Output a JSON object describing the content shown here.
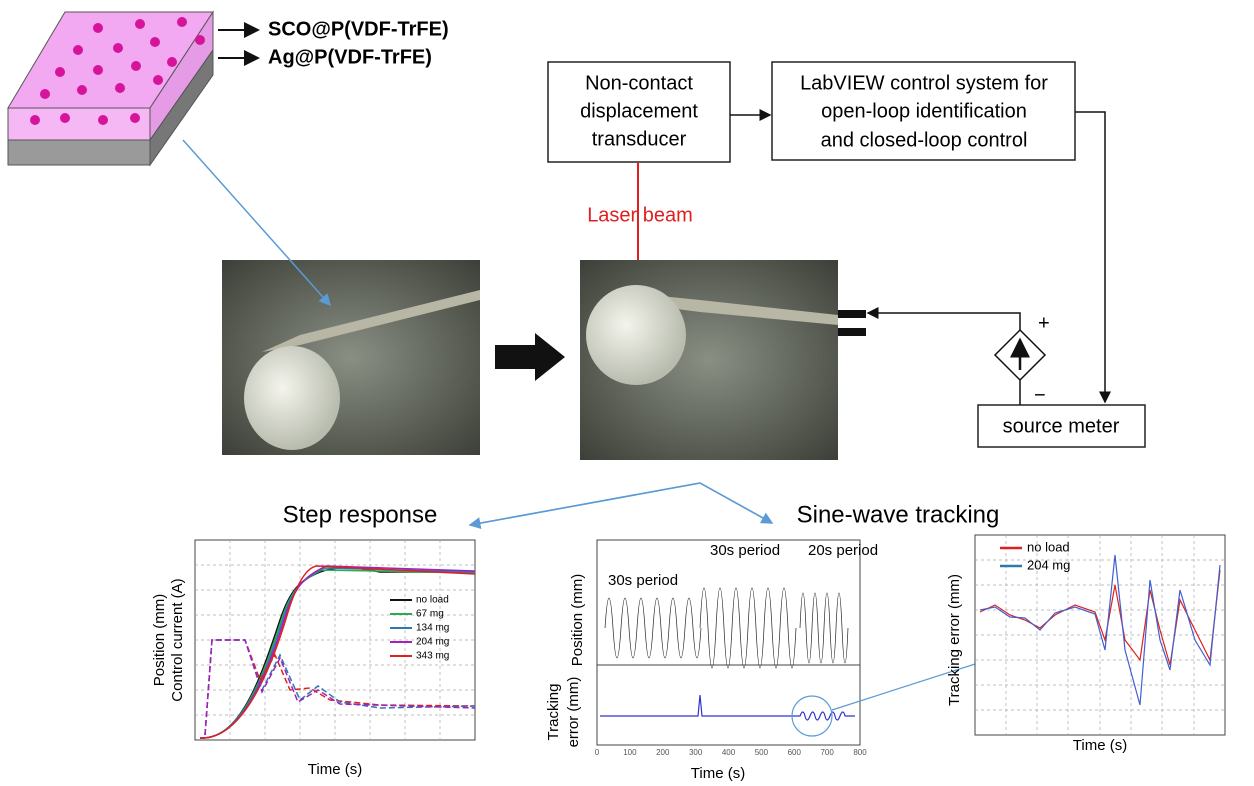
{
  "material": {
    "labels": [
      "SCO@P(VDF-TrFE)",
      "Ag@P(VDF-TrFE)"
    ]
  },
  "blocks": {
    "transducer": [
      "Non-contact",
      "displacement",
      "transducer"
    ],
    "labview": [
      "LabVIEW control system for",
      "open-loop identification",
      "and closed-loop control"
    ],
    "source_meter": "source meter"
  },
  "laser": "Laser beam",
  "polarity": [
    "+",
    "−"
  ],
  "step_response": {
    "title": "Step response",
    "y_label": [
      "Position (mm)",
      "Control current (A)"
    ],
    "x_label": "Time (s)",
    "legend": [
      "no load",
      "67 mg",
      "134 mg",
      "204 mg",
      "343 mg"
    ]
  },
  "sine": {
    "title": "Sine-wave tracking",
    "annotations": [
      "30s period",
      "30s period",
      "20s period"
    ],
    "y_label_top": "Position (mm)",
    "y_label_bottom": [
      "Tracking",
      "error (mm)"
    ],
    "x_label": "Time (s)",
    "x_ticks": [
      "0",
      "100",
      "200",
      "300",
      "400",
      "500",
      "600",
      "700",
      "800"
    ]
  },
  "zoom": {
    "y_label": "Tracking error (mm)",
    "x_label": "Time (s)",
    "legend": [
      "no load",
      "204 mg"
    ]
  }
}
